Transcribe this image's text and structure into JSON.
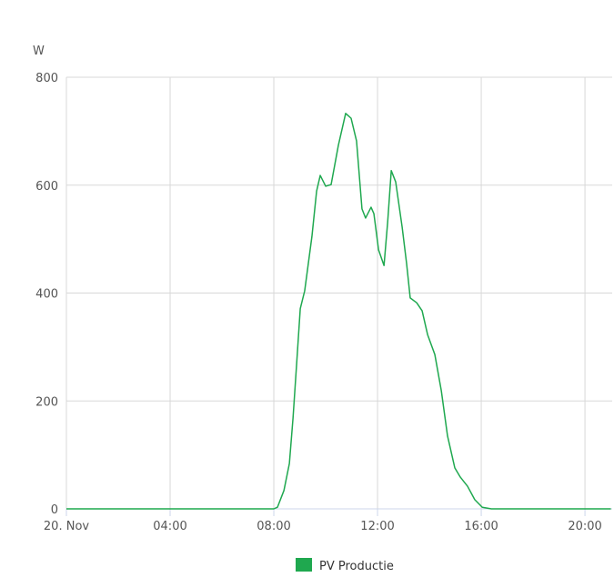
{
  "chart_data": {
    "type": "line",
    "y_label": "W",
    "x": [
      0,
      8.0,
      8.14,
      8.39,
      8.6,
      8.74,
      8.88,
      9.02,
      9.19,
      9.47,
      9.65,
      9.79,
      10.0,
      10.21,
      10.49,
      10.77,
      10.98,
      11.19,
      11.4,
      11.54,
      11.75,
      11.86,
      12.04,
      12.25,
      12.39,
      12.53,
      12.7,
      12.95,
      13.12,
      13.26,
      13.51,
      13.72,
      13.93,
      14.21,
      14.46,
      14.7,
      14.98,
      15.19,
      15.47,
      15.75,
      16.04,
      16.39,
      21
    ],
    "series": [
      {
        "name": "PV Productie",
        "color": "#1fa84f",
        "values": [
          0,
          0,
          3,
          34,
          84,
          168,
          269,
          371,
          404,
          505,
          589,
          618,
          598,
          601,
          674,
          733,
          724,
          682,
          556,
          539,
          559,
          547,
          480,
          451,
          531,
          627,
          606,
          522,
          455,
          391,
          382,
          367,
          323,
          286,
          219,
          135,
          76,
          59,
          42,
          17,
          3,
          0,
          0
        ]
      }
    ],
    "xlim": [
      0,
      21.05
    ],
    "xticks": [
      {
        "value": 0,
        "label": "20. Nov"
      },
      {
        "value": 4,
        "label": "04:00"
      },
      {
        "value": 8,
        "label": "08:00"
      },
      {
        "value": 12,
        "label": "12:00"
      },
      {
        "value": 16,
        "label": "16:00"
      },
      {
        "value": 20,
        "label": "20:00"
      }
    ],
    "ylim": [
      0,
      800
    ],
    "yticks": [
      0,
      200,
      400,
      600,
      800
    ],
    "grid": true
  }
}
